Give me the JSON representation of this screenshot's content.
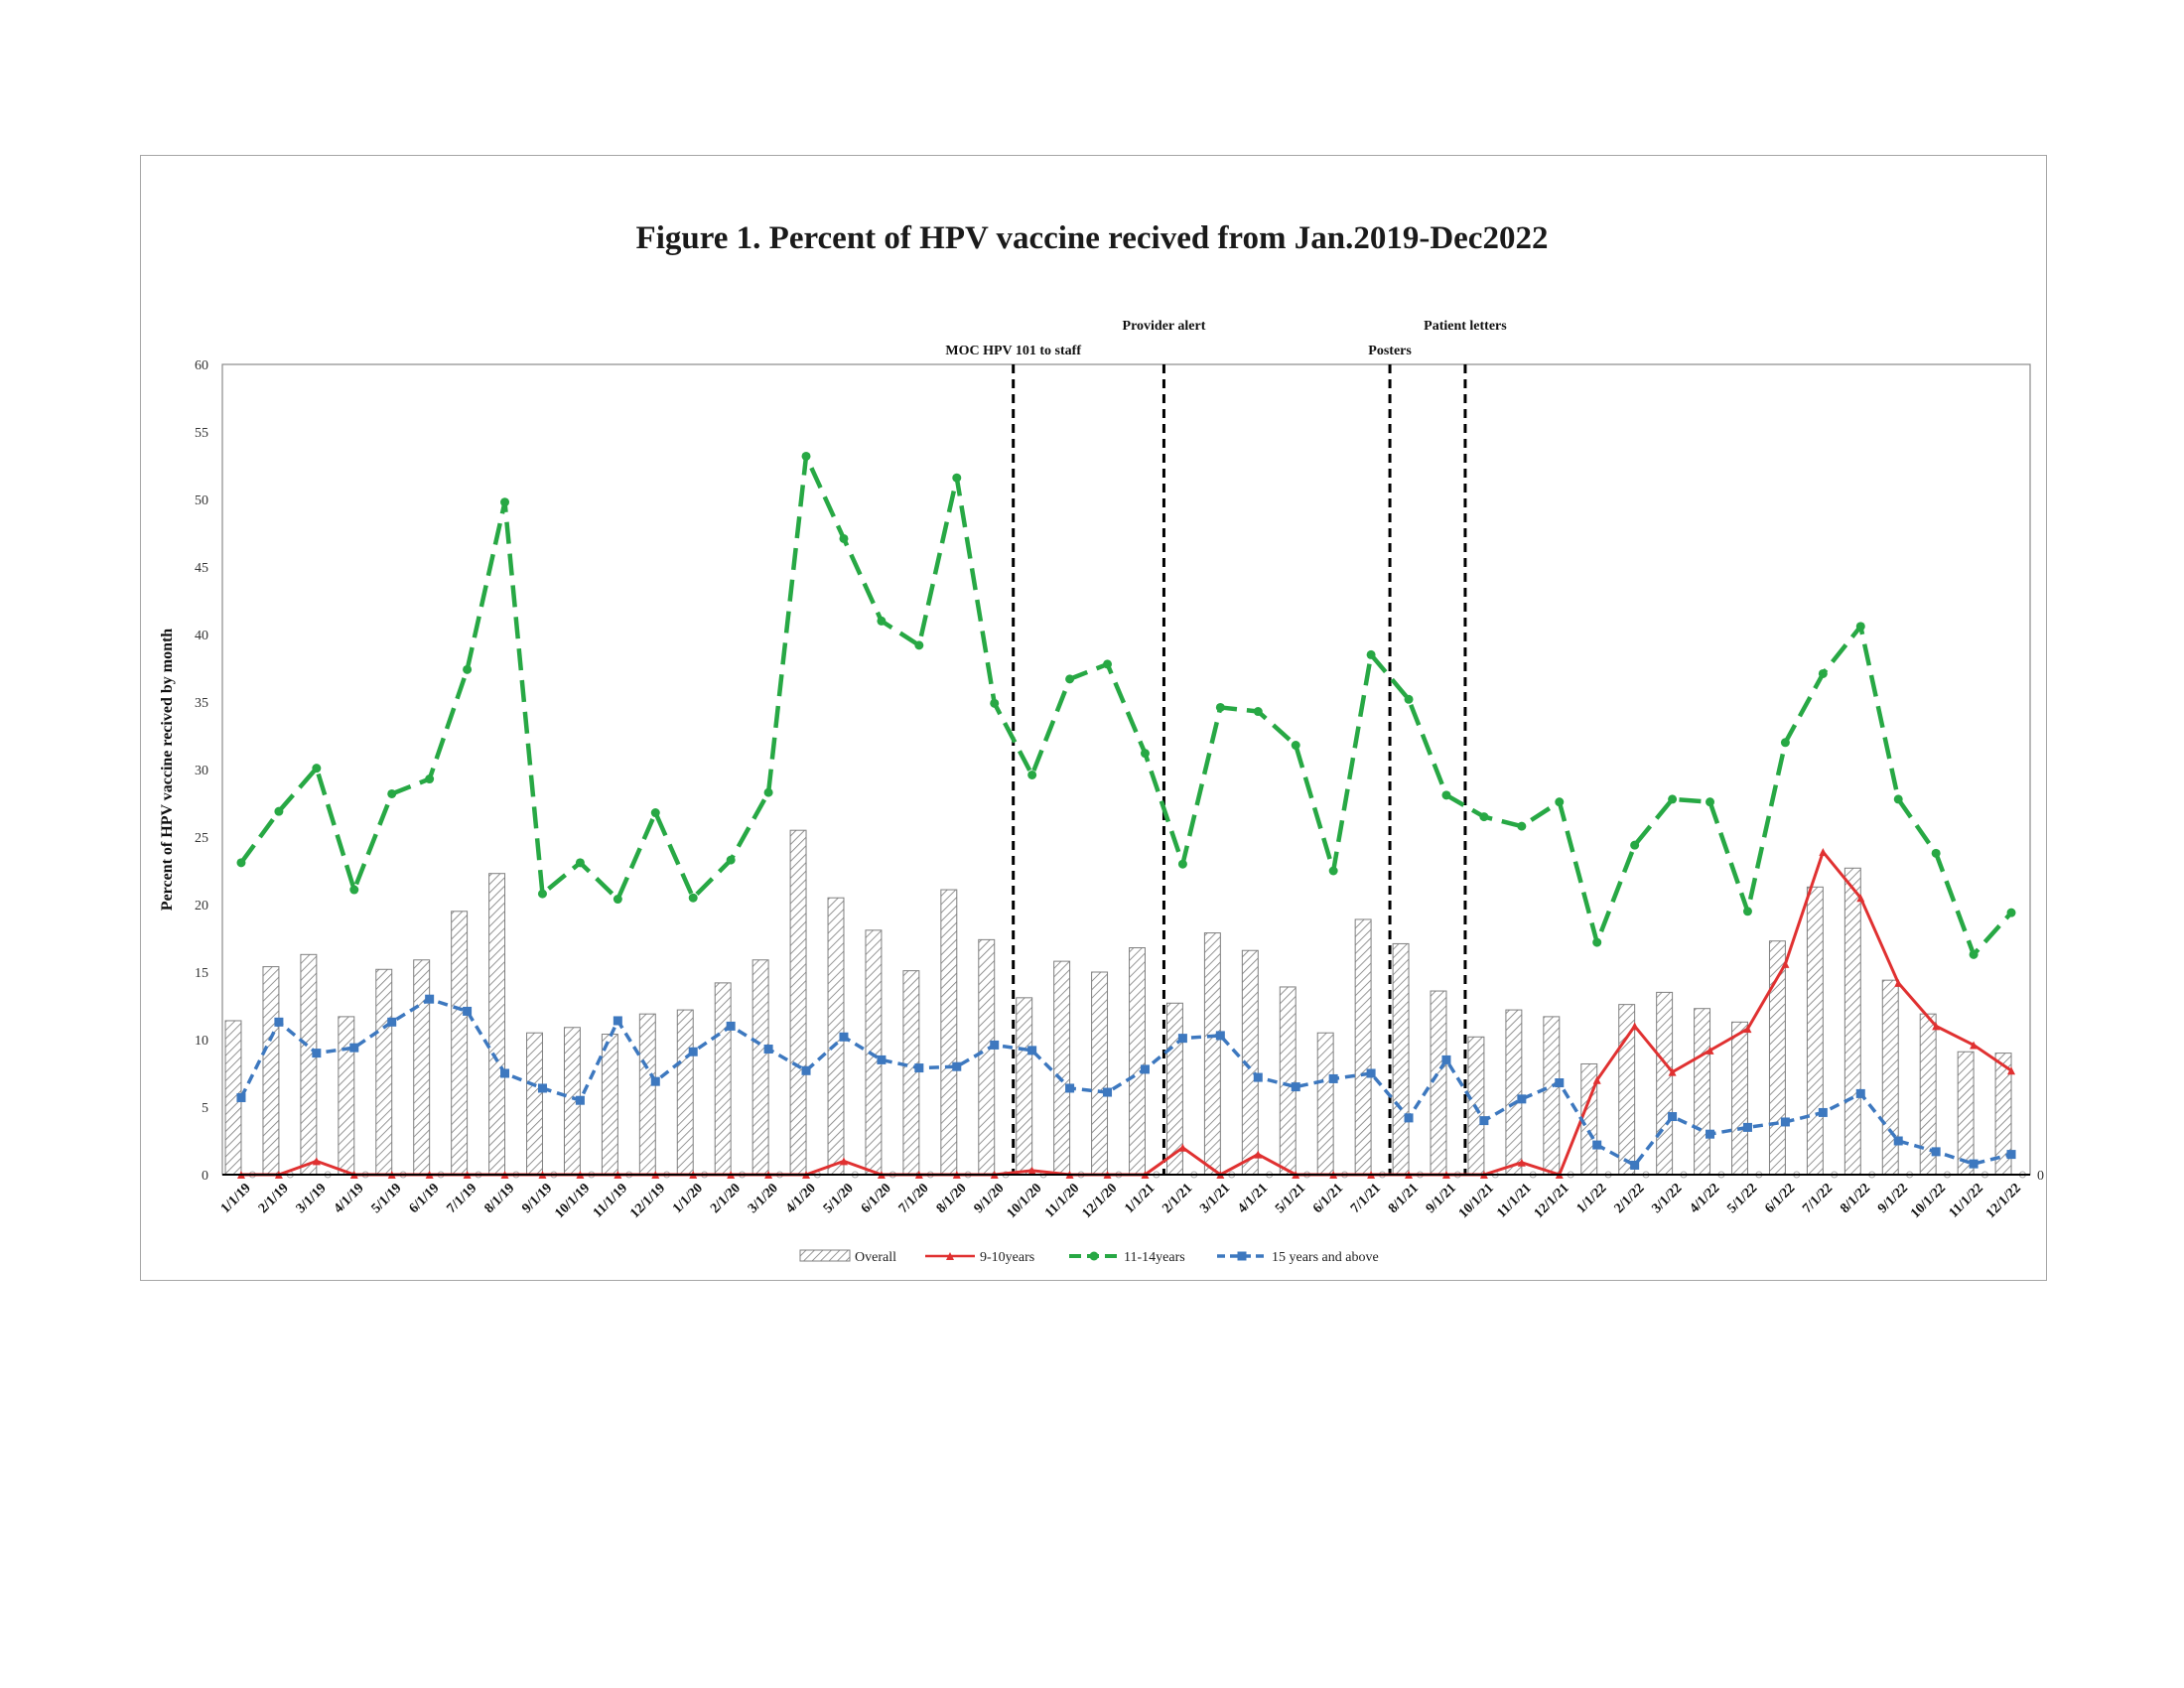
{
  "chart_data": {
    "type": "bar+line",
    "title": "Figure 1. Percent of HPV vaccine recived from Jan.2019-Dec2022",
    "ylabel": "Percent of  HPV vaccine recived by month",
    "xlabel": "",
    "ylim": [
      0,
      60
    ],
    "yticks": [
      0,
      5,
      10,
      15,
      20,
      25,
      30,
      35,
      40,
      45,
      50,
      55,
      60
    ],
    "secondary_ytick": "0",
    "grid": false,
    "legend_position": "bottom",
    "categories": [
      "1/1/19",
      "2/1/19",
      "3/1/19",
      "4/1/19",
      "5/1/19",
      "6/1/19",
      "7/1/19",
      "8/1/19",
      "9/1/19",
      "10/1/19",
      "11/1/19",
      "12/1/19",
      "1/1/20",
      "2/1/20",
      "3/1/20",
      "4/1/20",
      "5/1/20",
      "6/1/20",
      "7/1/20",
      "8/1/20",
      "9/1/20",
      "10/1/20",
      "11/1/20",
      "12/1/20",
      "1/1/21",
      "2/1/21",
      "3/1/21",
      "4/1/21",
      "5/1/21",
      "6/1/21",
      "7/1/21",
      "8/1/21",
      "9/1/21",
      "10/1/21",
      "11/1/21",
      "12/1/21",
      "1/1/22",
      "2/1/22",
      "3/1/22",
      "4/1/22",
      "5/1/22",
      "6/1/22",
      "7/1/22",
      "8/1/22",
      "9/1/22",
      "10/1/22",
      "11/1/22",
      "12/1/22"
    ],
    "series": [
      {
        "name": "Overall",
        "kind": "bar",
        "color": "#8c8c8c",
        "values": [
          11.4,
          15.4,
          16.3,
          11.7,
          15.2,
          15.9,
          19.5,
          22.3,
          10.5,
          10.9,
          10.4,
          11.9,
          12.2,
          14.2,
          15.9,
          25.5,
          20.5,
          18.1,
          15.1,
          21.1,
          17.4,
          13.1,
          15.8,
          15.0,
          16.8,
          12.7,
          17.9,
          16.6,
          13.9,
          10.5,
          18.9,
          17.1,
          13.6,
          10.2,
          12.2,
          11.7,
          8.2,
          12.6,
          13.5,
          12.3,
          11.3,
          17.3,
          21.3,
          22.7,
          14.4,
          11.9,
          9.1,
          9.0
        ]
      },
      {
        "name": "9-10years",
        "kind": "line",
        "color": "#e03131",
        "values": [
          0,
          0,
          1.0,
          0,
          0,
          0,
          0,
          0,
          0,
          0,
          0,
          0,
          0,
          0,
          0,
          0,
          1.0,
          0,
          0,
          0,
          0,
          0.3,
          0,
          0,
          0,
          2.0,
          0,
          1.5,
          0,
          0,
          0,
          0,
          0,
          0,
          0.9,
          0,
          7.0,
          11.0,
          7.6,
          9.2,
          10.8,
          15.6,
          23.9,
          20.5,
          14.2,
          11.0,
          9.6,
          7.7
        ]
      },
      {
        "name": "11-14years",
        "kind": "line",
        "color": "#27a844",
        "values": [
          23.1,
          26.9,
          30.1,
          21.1,
          28.2,
          29.3,
          37.4,
          49.8,
          20.8,
          23.1,
          20.4,
          26.8,
          20.5,
          23.3,
          28.3,
          53.2,
          47.1,
          41.0,
          39.2,
          51.6,
          34.9,
          29.6,
          36.7,
          37.8,
          31.2,
          23.0,
          34.6,
          34.3,
          31.8,
          22.5,
          38.5,
          35.2,
          28.1,
          26.5,
          25.8,
          27.6,
          17.2,
          24.4,
          27.8,
          27.6,
          19.5,
          32.0,
          37.1,
          40.6,
          27.8,
          23.8,
          16.3,
          19.4
        ]
      },
      {
        "name": "15 years and above",
        "kind": "line",
        "color": "#3d78bf",
        "values": [
          5.7,
          11.3,
          9.0,
          9.4,
          11.3,
          13.0,
          12.1,
          7.5,
          6.4,
          5.5,
          11.4,
          6.9,
          9.1,
          11.0,
          9.3,
          7.7,
          10.2,
          8.5,
          7.9,
          8.0,
          9.6,
          9.2,
          6.4,
          6.1,
          7.8,
          10.1,
          10.3,
          7.2,
          6.5,
          7.1,
          7.5,
          4.2,
          8.5,
          4.0,
          5.6,
          6.8,
          2.2,
          0.7,
          4.3,
          3.0,
          3.5,
          3.9,
          4.6,
          6.0,
          2.5,
          1.7,
          0.8,
          1.5
        ]
      }
    ],
    "annotations": [
      {
        "text": "MOC HPV 101 to staff",
        "category": "9/1/20"
      },
      {
        "text": "Provider alert",
        "category": "1/1/21"
      },
      {
        "text": "Posters",
        "category": "7/1/21"
      },
      {
        "text": "Patient letters",
        "category": "9/1/21"
      }
    ]
  }
}
